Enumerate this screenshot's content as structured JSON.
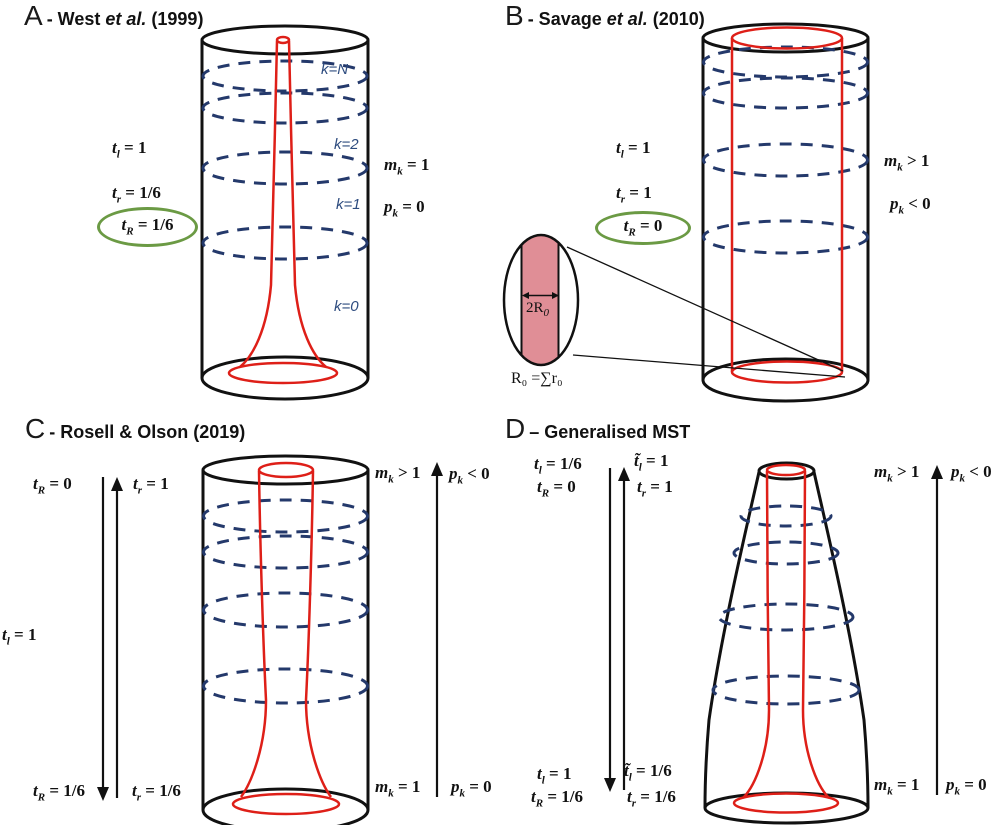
{
  "colors": {
    "outline_black": "#111111",
    "tube_red": "#DE1F18",
    "branch_dash_blue": "#24396B",
    "k_label_blue": "#2E4C7F",
    "highlight_green": "#6B9A44",
    "inset_band_pink": "#E08E96",
    "background": "#ffffff"
  },
  "panels": {
    "a": {
      "letter": "A",
      "title_pre": "- West ",
      "title_emph": "et al.",
      "title_post": " (1999)",
      "labels": {
        "tl": {
          "sym": "t",
          "sub": "l",
          "rest": "= 1"
        },
        "tr": {
          "sym": "t",
          "sub": "r",
          "rest": "= 1/6"
        },
        "tR": {
          "sym": "t",
          "sub": "R",
          "rest": "= 1/6"
        },
        "mk": {
          "sym": "m",
          "sub": "k",
          "rest": "= 1"
        },
        "pk": {
          "sym": "p",
          "sub": "k",
          "rest": "= 0"
        }
      },
      "k_labels": [
        "k=N",
        "k=2",
        "k=1",
        "k=0"
      ]
    },
    "b": {
      "letter": "B",
      "title_pre": "- Savage ",
      "title_emph": "et al.",
      "title_post": " (2010)",
      "labels": {
        "tl": {
          "sym": "t",
          "sub": "l",
          "rest": "= 1"
        },
        "tr": {
          "sym": "t",
          "sub": "r",
          "rest": "= 1"
        },
        "tR": {
          "sym": "t",
          "sub": "R",
          "rest": "= 0"
        },
        "mk": {
          "sym": "m",
          "sub": "k",
          "rest": "> 1"
        },
        "pk": {
          "sym": "p",
          "sub": "k",
          "rest": "< 0"
        }
      },
      "inset": {
        "diameter": {
          "sym": "2R",
          "sub": "0",
          "rest": ""
        },
        "sum": "R₀ =∑r₀"
      }
    },
    "c": {
      "letter": "C",
      "title_pre": "- Rosell & Olson (2019)",
      "title_emph": "",
      "title_post": "",
      "labels": {
        "tR_top": {
          "sym": "t",
          "sub": "R",
          "rest": "= 0"
        },
        "tr_top": {
          "sym": "t",
          "sub": "r",
          "rest": "= 1"
        },
        "tl": {
          "sym": "t",
          "sub": "l",
          "rest": "= 1"
        },
        "tR_bottom": {
          "sym": "t",
          "sub": "R",
          "rest": "= 1/6"
        },
        "tr_bottom": {
          "sym": "t",
          "sub": "r",
          "rest": "= 1/6"
        },
        "mk_top": {
          "sym": "m",
          "sub": "k",
          "rest": "> 1"
        },
        "pk_top": {
          "sym": "p",
          "sub": "k",
          "rest": "< 0"
        },
        "mk_bottom": {
          "sym": "m",
          "sub": "k",
          "rest": "= 1"
        },
        "pk_bottom": {
          "sym": "p",
          "sub": "k",
          "rest": "= 0"
        }
      }
    },
    "d": {
      "letter": "D",
      "title_pre": "– Generalised MST",
      "title_emph": "",
      "title_post": "",
      "labels": {
        "tl_top": {
          "sym": "t",
          "sub": "l",
          "rest": "= 1/6"
        },
        "tR_top": {
          "sym": "t",
          "sub": "R",
          "rest": "= 0"
        },
        "ttl_top": {
          "sym": "t̃",
          "sub": "l",
          "rest": "= 1"
        },
        "tr_top": {
          "sym": "t",
          "sub": "r",
          "rest": "= 1"
        },
        "tl_bottom": {
          "sym": "t",
          "sub": "l",
          "rest": "= 1"
        },
        "tR_bottom": {
          "sym": "t",
          "sub": "R",
          "rest": "= 1/6"
        },
        "ttl_bottom": {
          "sym": "t̃",
          "sub": "l",
          "rest": "= 1/6"
        },
        "tr_bottom": {
          "sym": "t",
          "sub": "r",
          "rest": "= 1/6"
        },
        "mk_top": {
          "sym": "m",
          "sub": "k",
          "rest": "> 1"
        },
        "pk_top": {
          "sym": "p",
          "sub": "k",
          "rest": "< 0"
        },
        "mk_bottom": {
          "sym": "m",
          "sub": "k",
          "rest": "= 1"
        },
        "pk_bottom": {
          "sym": "p",
          "sub": "k",
          "rest": "= 0"
        }
      }
    }
  }
}
